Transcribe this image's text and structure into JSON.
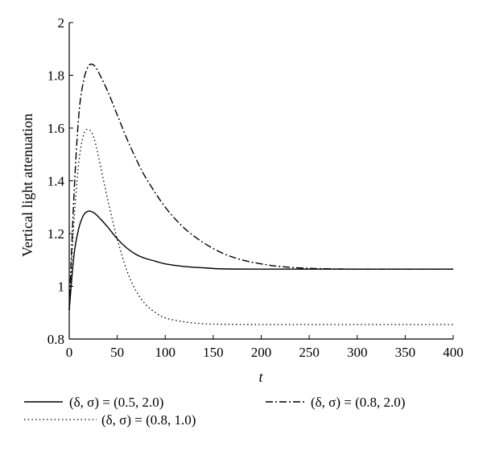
{
  "chart_data": {
    "type": "line",
    "title": "",
    "xlabel": "t",
    "ylabel": "Vertical light attenuation",
    "xlim": [
      0,
      400
    ],
    "ylim": [
      0.8,
      2.0
    ],
    "xticks": [
      0,
      50,
      100,
      150,
      200,
      250,
      300,
      350,
      400
    ],
    "yticks": [
      0.8,
      1.0,
      1.2,
      1.4,
      1.6,
      1.8,
      2.0
    ],
    "xtick_labels": [
      "0",
      "50",
      "100",
      "150",
      "200",
      "250",
      "300",
      "350",
      "400"
    ],
    "ytick_labels": [
      "0.8",
      "1",
      "1.2",
      "1.4",
      "1.6",
      "1.8",
      "2"
    ],
    "grid": false,
    "legend_position": "bottom",
    "series": [
      {
        "name": "(δ, σ) = (0.5, 2.0)",
        "style": "solid",
        "x": [
          0,
          5,
          10,
          15,
          20,
          25,
          30,
          40,
          50,
          60,
          70,
          80,
          90,
          100,
          120,
          140,
          160,
          200,
          250,
          300,
          350,
          400
        ],
        "y": [
          0.91,
          1.12,
          1.22,
          1.27,
          1.285,
          1.28,
          1.265,
          1.225,
          1.18,
          1.145,
          1.12,
          1.105,
          1.095,
          1.085,
          1.075,
          1.07,
          1.066,
          1.065,
          1.065,
          1.065,
          1.065,
          1.065
        ]
      },
      {
        "name": "(δ, σ) = (0.8, 1.0)",
        "style": "dotted",
        "x": [
          0,
          5,
          10,
          15,
          20,
          25,
          30,
          40,
          50,
          60,
          70,
          80,
          90,
          100,
          120,
          140,
          160,
          200,
          250,
          300,
          350,
          400
        ],
        "y": [
          0.91,
          1.25,
          1.47,
          1.575,
          1.595,
          1.57,
          1.5,
          1.33,
          1.18,
          1.06,
          0.98,
          0.93,
          0.9,
          0.88,
          0.865,
          0.858,
          0.856,
          0.855,
          0.855,
          0.855,
          0.855,
          0.855
        ]
      },
      {
        "name": "(δ, σ) = (0.8, 2.0)",
        "style": "dashdot",
        "x": [
          0,
          5,
          10,
          15,
          20,
          25,
          30,
          40,
          50,
          60,
          70,
          80,
          100,
          120,
          140,
          160,
          180,
          200,
          220,
          250,
          300,
          350,
          400
        ],
        "y": [
          0.91,
          1.35,
          1.65,
          1.78,
          1.835,
          1.84,
          1.815,
          1.74,
          1.65,
          1.56,
          1.48,
          1.41,
          1.3,
          1.22,
          1.165,
          1.125,
          1.1,
          1.085,
          1.075,
          1.068,
          1.065,
          1.065,
          1.065
        ]
      }
    ],
    "legend": [
      {
        "label": "(δ, σ) = (0.5, 2.0)",
        "style": "solid"
      },
      {
        "label": "(δ, σ) = (0.8, 2.0)",
        "style": "dashdot"
      },
      {
        "label": "(δ, σ) = (0.8, 1.0)",
        "style": "dotted"
      }
    ]
  }
}
